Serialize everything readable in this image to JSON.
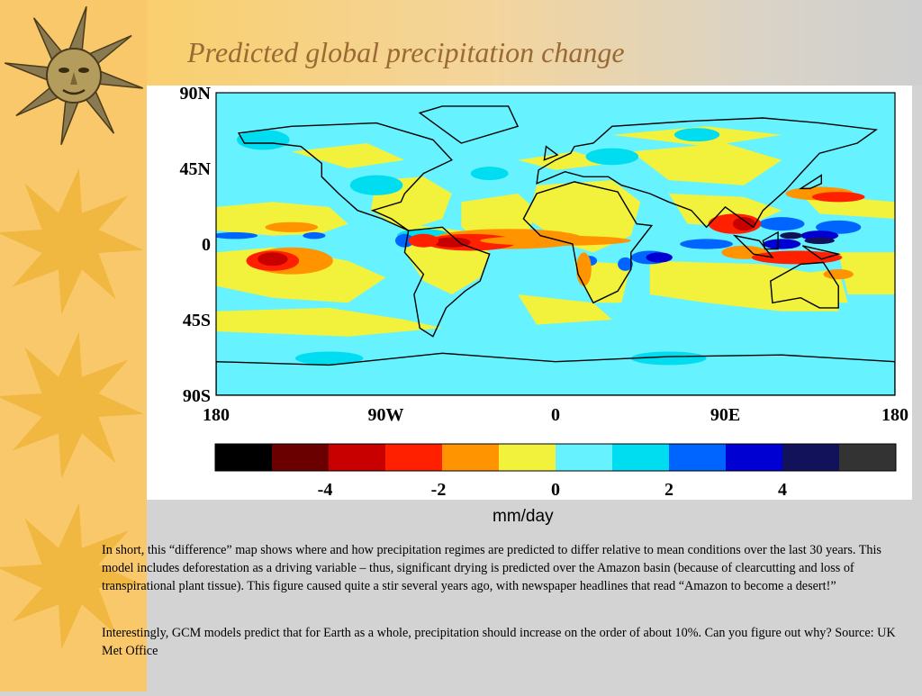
{
  "slide": {
    "title": "Predicted global precipitation change",
    "paragraphs": [
      "In short, this “difference” map shows where and how precipitation regimes are predicted to differ relative to mean conditions over the last 30 years.  This model includes deforestation as a driving variable – thus, significant drying is predicted over the Amazon basin (because of clearcutting and loss of transpirational plant tissue).  This figure caused quite a stir several years ago, with newspaper headlines that read “Amazon to become a desert!”",
      "Interestingly, GCM models predict that for Earth as a whole, precipitation should increase on the order of about 10%.  Can you figure out why? Source:  UK Met Office"
    ]
  },
  "map": {
    "lat_labels": [
      "90N",
      "45N",
      "0",
      "45S",
      "90S"
    ],
    "lon_labels": [
      "180",
      "90W",
      "0",
      "90E",
      "180"
    ],
    "background_color": "#66f2ff",
    "land_color": "#f2f23c"
  },
  "colorbar": {
    "unit": "mm/day",
    "colors": [
      "#000000",
      "#6b0000",
      "#c80000",
      "#ff2000",
      "#ff9400",
      "#f2f23c",
      "#66f2ff",
      "#00dcf0",
      "#0064ff",
      "#0000d2",
      "#12125a",
      "#333333"
    ],
    "tick_labels": [
      {
        "value": -4,
        "label": "-4"
      },
      {
        "value": -2,
        "label": "-2"
      },
      {
        "value": 0,
        "label": "0"
      },
      {
        "value": 2,
        "label": "2"
      },
      {
        "value": 4,
        "label": "4"
      }
    ]
  },
  "decorations": {
    "sun_color": "#f0b840",
    "ornament_color": "#8a7a52"
  }
}
